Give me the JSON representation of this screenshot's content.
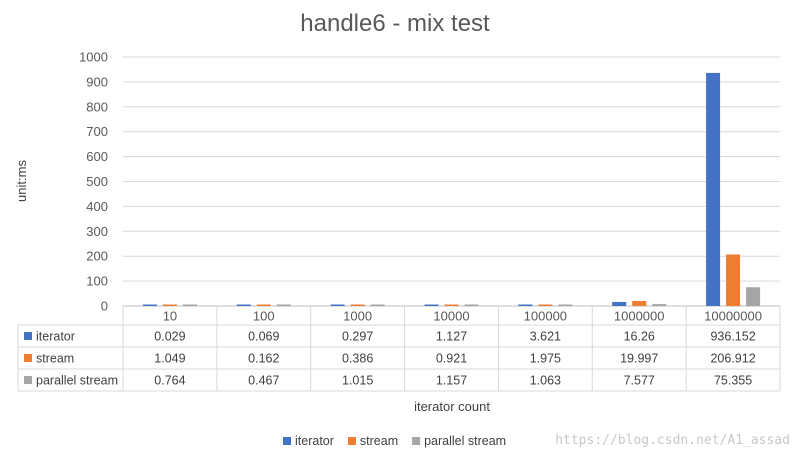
{
  "chart_data": {
    "type": "bar",
    "title": "handle6 - mix test",
    "xlabel": "iterator count",
    "ylabel": "unit:ms",
    "ylim": [
      0,
      1000
    ],
    "yticks": [
      "0",
      "100",
      "200",
      "300",
      "400",
      "500",
      "600",
      "700",
      "800",
      "900",
      "1000"
    ],
    "categories": [
      "10",
      "100",
      "1000",
      "10000",
      "100000",
      "1000000",
      "10000000"
    ],
    "series": [
      {
        "name": "iterator",
        "color": "#4472C4",
        "values": [
          0.029,
          0.069,
          0.297,
          1.127,
          3.621,
          16.26,
          936.152
        ],
        "labels": [
          "0.029",
          "0.069",
          "0.297",
          "1.127",
          "3.621",
          "16.26",
          "936.152"
        ]
      },
      {
        "name": "stream",
        "color": "#ED7D31",
        "values": [
          1.049,
          0.162,
          0.386,
          0.921,
          1.975,
          19.997,
          206.912
        ],
        "labels": [
          "1.049",
          "0.162",
          "0.386",
          "0.921",
          "1.975",
          "19.997",
          "206.912"
        ]
      },
      {
        "name": "parallel stream",
        "color": "#A5A5A5",
        "values": [
          0.764,
          0.467,
          1.015,
          1.157,
          1.063,
          7.577,
          75.355
        ],
        "labels": [
          "0.764",
          "0.467",
          "1.015",
          "1.157",
          "1.063",
          "7.577",
          "75.355"
        ]
      }
    ],
    "grid": true,
    "legend_position": "bottom",
    "data_table": true
  },
  "watermark": "https://blog.csdn.net/A1_assad"
}
